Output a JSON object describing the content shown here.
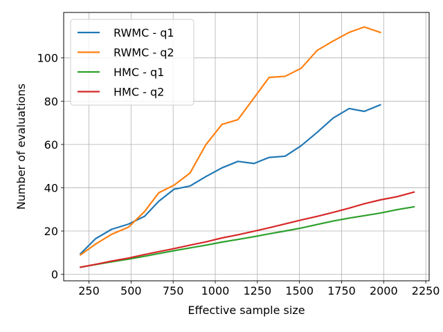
{
  "chart_data": {
    "type": "line",
    "title": "",
    "xlabel": "Effective sample size",
    "ylabel": "Number of evaluations",
    "xlim": [
      100,
      2270
    ],
    "ylim": [
      -3,
      121
    ],
    "xticks": [
      250,
      500,
      750,
      1000,
      1250,
      1500,
      1750,
      2000,
      2250
    ],
    "yticks": [
      0,
      20,
      40,
      60,
      80,
      100
    ],
    "grid": true,
    "legend_position": "top-left",
    "series": [
      {
        "name": "RWMC - q1",
        "color": "#1f77b4",
        "x": [
          200,
          290,
          385,
          485,
          580,
          665,
          755,
          850,
          945,
          1040,
          1135,
          1230,
          1320,
          1415,
          1510,
          1605,
          1700,
          1795,
          1885,
          1980
        ],
        "y": [
          9.5,
          16.5,
          20.8,
          23.2,
          26.8,
          33.8,
          39.3,
          40.8,
          45.2,
          49.2,
          52.2,
          51.2,
          54.0,
          54.6,
          59.4,
          65.6,
          72.2,
          76.6,
          75.3,
          78.3
        ]
      },
      {
        "name": "RWMC - q2",
        "color": "#ff7f0e",
        "x": [
          200,
          290,
          385,
          485,
          580,
          665,
          755,
          850,
          945,
          1040,
          1135,
          1230,
          1320,
          1415,
          1510,
          1605,
          1700,
          1795,
          1885,
          1980
        ],
        "y": [
          9.0,
          14.0,
          18.5,
          21.8,
          29.0,
          37.7,
          41.2,
          46.8,
          60.0,
          69.3,
          71.5,
          81.5,
          91.0,
          91.5,
          95.2,
          103.5,
          107.8,
          111.8,
          114.3,
          111.8
        ]
      },
      {
        "name": "HMC - q1",
        "color": "#2ca02c",
        "x": [
          200,
          290,
          385,
          485,
          580,
          665,
          755,
          850,
          945,
          1040,
          1135,
          1230,
          1320,
          1415,
          1510,
          1605,
          1700,
          1795,
          1885,
          1980,
          2080,
          2180
        ],
        "y": [
          3.3,
          4.5,
          5.8,
          7.0,
          8.3,
          9.6,
          10.9,
          12.2,
          13.5,
          14.9,
          16.1,
          17.4,
          18.7,
          20.0,
          21.4,
          23.0,
          24.6,
          26.0,
          27.1,
          28.3,
          29.9,
          31.2
        ]
      },
      {
        "name": "HMC - q2",
        "color": "#d62728",
        "x": [
          200,
          290,
          385,
          485,
          580,
          665,
          755,
          850,
          945,
          1040,
          1135,
          1230,
          1320,
          1415,
          1510,
          1605,
          1700,
          1795,
          1885,
          1980,
          2080,
          2180
        ],
        "y": [
          3.3,
          4.6,
          6.1,
          7.5,
          9.1,
          10.5,
          11.9,
          13.5,
          15.0,
          16.8,
          18.3,
          19.9,
          21.5,
          23.3,
          25.1,
          26.8,
          28.6,
          30.6,
          32.6,
          34.4,
          35.9,
          38.0
        ]
      }
    ]
  }
}
